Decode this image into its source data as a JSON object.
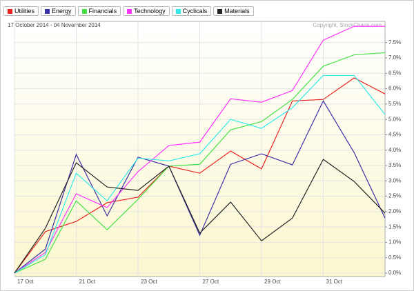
{
  "chart_data": {
    "type": "line",
    "subtitle": "17 October 2014 - 04 November 2014",
    "credit": "Copyright, StockCharts.com",
    "categories": [
      "17 Oct",
      null,
      "21 Oct",
      null,
      "23 Oct",
      null,
      "27 Oct",
      null,
      "29 Oct",
      null,
      "31 Oct",
      null,
      null
    ],
    "series": [
      {
        "name": "Utilities",
        "color": "#e8231f",
        "values": [
          0,
          1.35,
          1.68,
          2.29,
          2.47,
          3.48,
          3.25,
          3.97,
          3.39,
          5.6,
          5.65,
          6.35,
          5.83
        ]
      },
      {
        "name": "Energy",
        "color": "#3b2fa6",
        "values": [
          0,
          0.78,
          3.86,
          1.86,
          3.77,
          3.48,
          1.23,
          3.54,
          3.88,
          3.52,
          5.6,
          3.92,
          1.79
        ]
      },
      {
        "name": "Financials",
        "color": "#44e244",
        "values": [
          0,
          0.45,
          2.35,
          1.41,
          2.4,
          3.48,
          3.54,
          4.66,
          4.93,
          5.65,
          6.73,
          7.1,
          7.17
        ]
      },
      {
        "name": "Technology",
        "color": "#ff33ff",
        "values": [
          0,
          0.67,
          2.58,
          2.13,
          3.3,
          4.15,
          4.26,
          5.67,
          5.56,
          5.94,
          7.58,
          8.03,
          8.03
        ]
      },
      {
        "name": "Cyclicals",
        "color": "#33eaea",
        "values": [
          0,
          0.6,
          3.25,
          2.35,
          3.74,
          3.65,
          3.88,
          5.0,
          4.71,
          5.38,
          6.43,
          6.43,
          5.16
        ]
      },
      {
        "name": "Materials",
        "color": "#222222",
        "values": [
          0,
          1.46,
          3.59,
          2.8,
          2.69,
          3.48,
          1.3,
          2.31,
          1.05,
          1.79,
          3.7,
          2.98,
          1.95
        ]
      }
    ],
    "ylim": [
      0,
      8.1
    ],
    "yticks": [
      {
        "value": 0,
        "label": "0.0%"
      },
      {
        "value": 0.5,
        "label": "0.5%"
      },
      {
        "value": 1,
        "label": "1.0%"
      },
      {
        "value": 1.5,
        "label": "1.5%"
      },
      {
        "value": 2,
        "label": "2.0%"
      },
      {
        "value": 2.5,
        "label": "2.5%"
      },
      {
        "value": 3,
        "label": "3.0%"
      },
      {
        "value": 3.5,
        "label": "3.5%"
      },
      {
        "value": 4,
        "label": "4.0%"
      },
      {
        "value": 4.5,
        "label": "4.5%"
      },
      {
        "value": 5,
        "label": "5.0%"
      },
      {
        "value": 5.5,
        "label": "5.5%"
      },
      {
        "value": 6,
        "label": "6.0%"
      },
      {
        "value": 6.5,
        "label": "6.5%"
      },
      {
        "value": 7,
        "label": "7.0%"
      },
      {
        "value": 7.5,
        "label": "7.5%"
      }
    ],
    "grid": true
  }
}
